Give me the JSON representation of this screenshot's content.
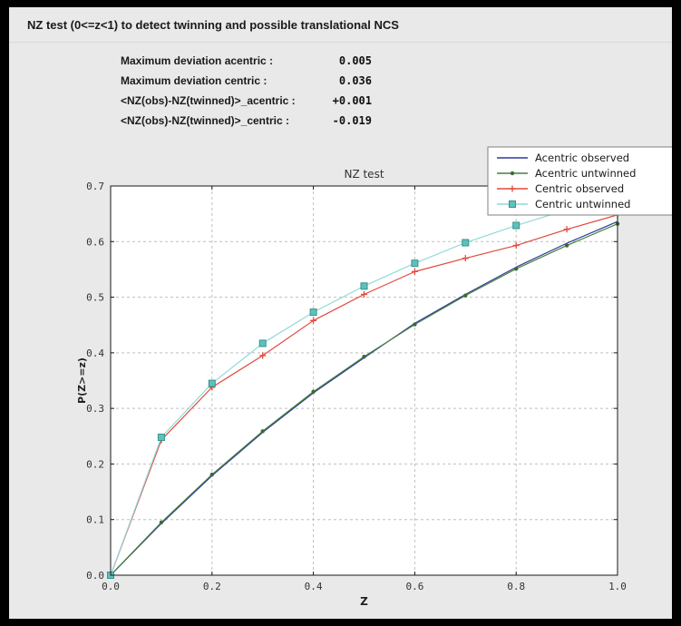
{
  "window": {
    "background": "#e9e9e9",
    "frame": "#000000"
  },
  "header": {
    "title": "NZ test (0<=z<1) to detect twinning and possible translational NCS"
  },
  "stats": {
    "rows": [
      {
        "label": "Maximum deviation acentric :",
        "value": "0.005"
      },
      {
        "label": "Maximum deviation centric :",
        "value": "0.036"
      },
      {
        "label": "<NZ(obs)-NZ(twinned)>_acentric :",
        "value": "+0.001"
      },
      {
        "label": "<NZ(obs)-NZ(twinned)>_centric :",
        "value": "-0.019"
      }
    ]
  },
  "chart_data": {
    "type": "line",
    "title": "NZ test",
    "xlabel": "Z",
    "ylabel": "P(Z>=z)",
    "xlim": [
      0.0,
      1.0
    ],
    "ylim": [
      0.0,
      0.7
    ],
    "xticks": [
      0.0,
      0.2,
      0.4,
      0.6,
      0.8,
      1.0
    ],
    "yticks": [
      0.0,
      0.1,
      0.2,
      0.3,
      0.4,
      0.5,
      0.6,
      0.7
    ],
    "grid": true,
    "grid_style": "dashed",
    "grid_color": "#bfbfbf",
    "plot_background": "#ffffff",
    "legend_position": "top-right",
    "x": [
      0.0,
      0.1,
      0.2,
      0.3,
      0.4,
      0.5,
      0.6,
      0.7,
      0.8,
      0.9,
      1.0
    ],
    "series": [
      {
        "name": "Acentric observed",
        "color": "#2b3a9b",
        "marker": "none",
        "values": [
          0.0,
          0.093,
          0.179,
          0.257,
          0.328,
          0.391,
          0.453,
          0.505,
          0.554,
          0.597,
          0.636
        ]
      },
      {
        "name": "Acentric untwinned",
        "color": "#4a7f3e",
        "marker": "circle",
        "marker_color": "#3d6b34",
        "values": [
          0.0,
          0.095,
          0.181,
          0.259,
          0.33,
          0.393,
          0.451,
          0.503,
          0.551,
          0.593,
          0.632
        ]
      },
      {
        "name": "Centric observed",
        "color": "#e2493d",
        "marker": "plus",
        "marker_color": "#e2493d",
        "values": [
          0.0,
          0.243,
          0.338,
          0.395,
          0.458,
          0.505,
          0.546,
          0.57,
          0.593,
          0.622,
          0.648
        ]
      },
      {
        "name": "Centric untwinned",
        "color": "#93d9d9",
        "marker": "square",
        "marker_color": "#62c0ba",
        "marker_edge": "#2f958e",
        "values": [
          0.0,
          0.248,
          0.345,
          0.417,
          0.473,
          0.52,
          0.561,
          0.598,
          0.629,
          0.657,
          0.683
        ]
      }
    ]
  }
}
